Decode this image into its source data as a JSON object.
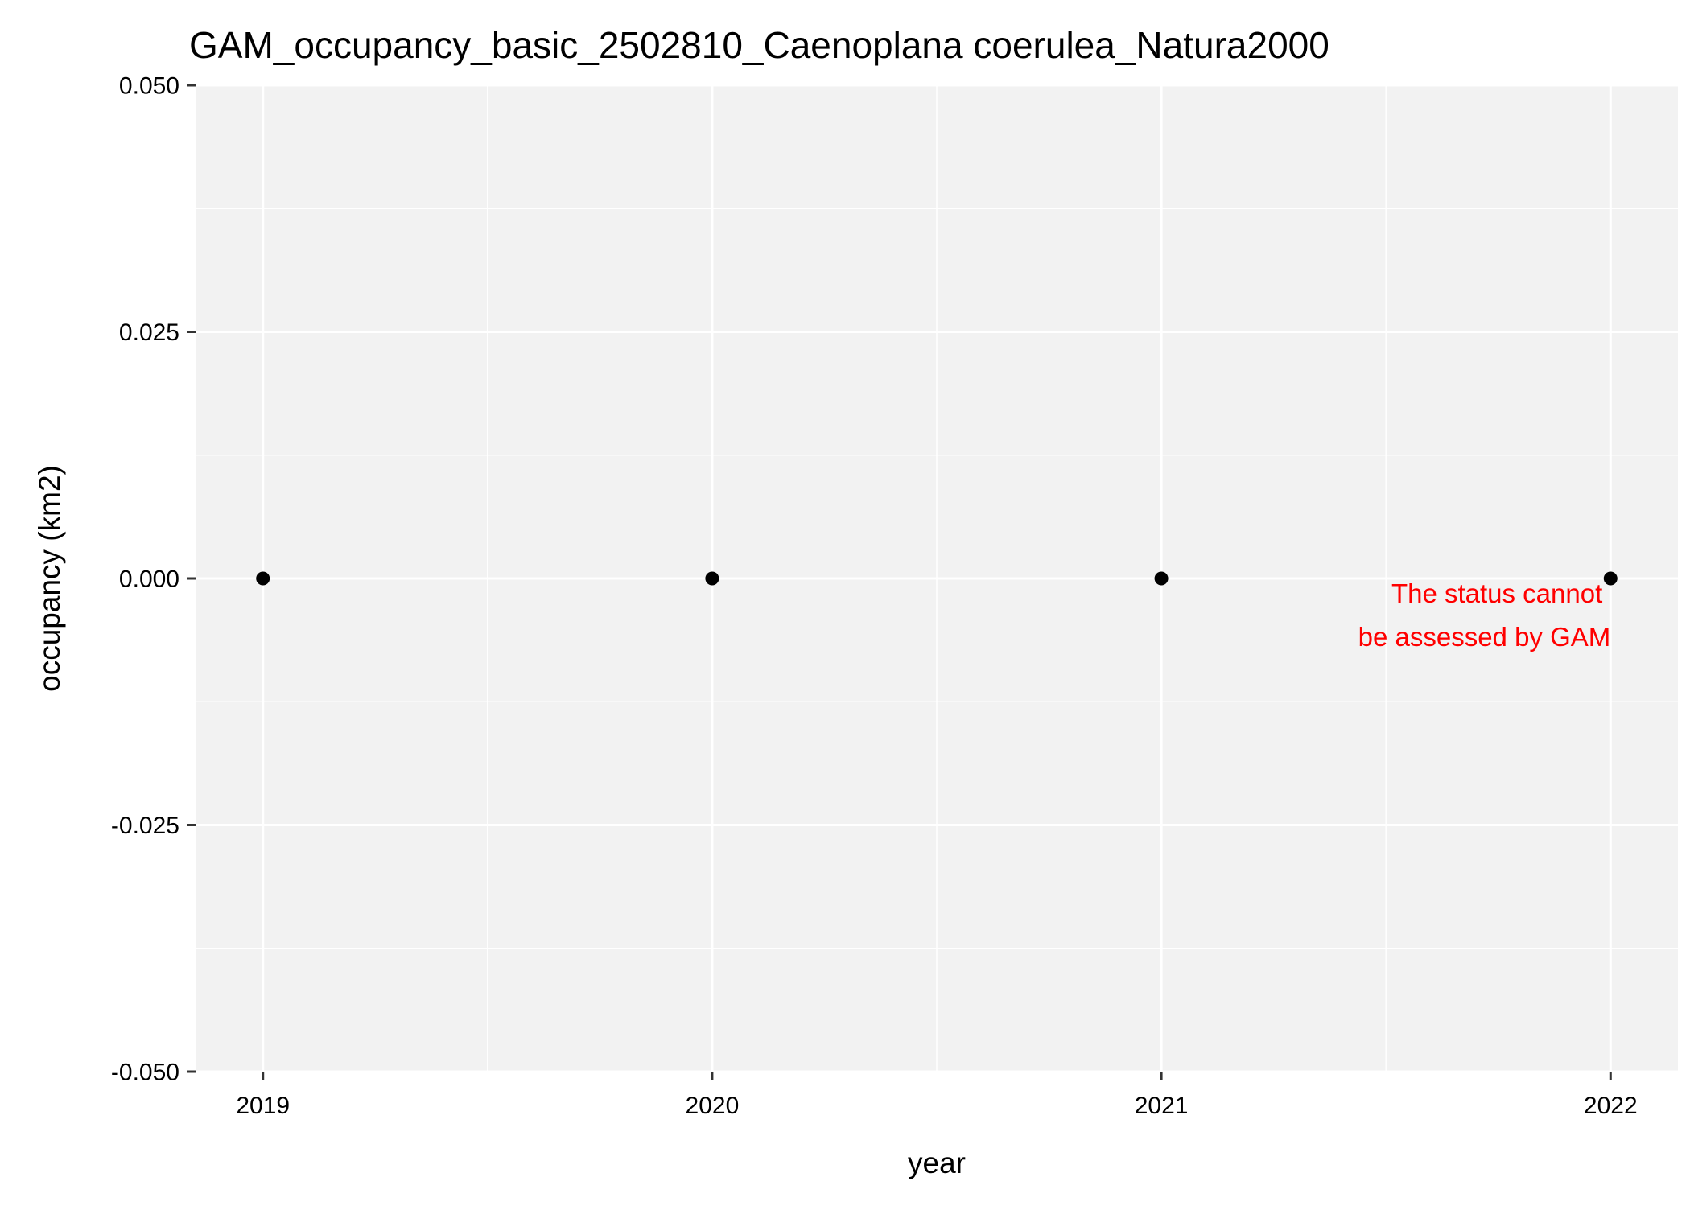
{
  "chart_data": {
    "type": "scatter",
    "title": "GAM_occupancy_basic_2502810_Caenoplana coerulea_Natura2000",
    "xlabel": "year",
    "ylabel": "occupancy (km2)",
    "x": [
      2019,
      2020,
      2021,
      2022
    ],
    "y": [
      0,
      0,
      0,
      0
    ],
    "xlim": [
      2018.85,
      2022.15
    ],
    "ylim": [
      -0.05,
      0.05
    ],
    "x_ticks": [
      2019,
      2020,
      2021,
      2022
    ],
    "x_tick_labels": [
      "2019",
      "2020",
      "2021",
      "2022"
    ],
    "y_ticks": [
      -0.05,
      -0.025,
      0,
      0.025,
      0.05
    ],
    "y_tick_labels": [
      "-0.050",
      "-0.025",
      "0.000",
      "0.025",
      "0.050"
    ],
    "grid": true,
    "legend": "none",
    "annotation": {
      "lines": [
        "The status cannot",
        "be assessed by GAM"
      ],
      "x": 2022,
      "y": 0,
      "color": "#ff0000"
    },
    "colors": {
      "panel_background": "#f2f2f2",
      "grid": "#ffffff",
      "points": "#000000"
    }
  }
}
